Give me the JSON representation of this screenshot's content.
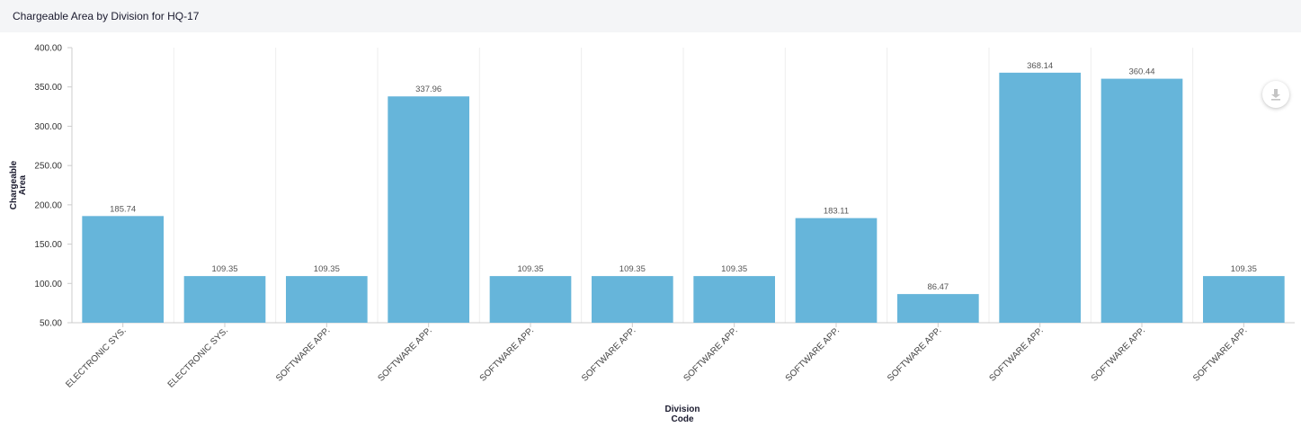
{
  "header": {
    "title": "Chargeable Area by Division for HQ-17"
  },
  "download_icon": "download-icon",
  "colors": {
    "bar": "#66b5da",
    "grid": "#eeeeee",
    "axis": "#cccccc",
    "header_bg": "#f4f5f7"
  },
  "chart_data": {
    "type": "bar",
    "title": "Chargeable Area by Division for HQ-17",
    "xlabel": "Division Code",
    "ylabel": "Chargeable Area",
    "ylim": [
      50,
      400
    ],
    "yticks": [
      "50.00",
      "100.00",
      "150.00",
      "200.00",
      "250.00",
      "300.00",
      "350.00",
      "400.00"
    ],
    "categories": [
      "ELECTRONIC SYS.",
      "ELECTRONIC SYS.",
      "SOFTWARE APP.",
      "SOFTWARE APP.",
      "SOFTWARE APP.",
      "SOFTWARE APP.",
      "SOFTWARE APP.",
      "SOFTWARE APP.",
      "SOFTWARE APP.",
      "SOFTWARE APP.",
      "SOFTWARE APP.",
      "SOFTWARE APP."
    ],
    "values": [
      185.74,
      109.35,
      109.35,
      337.96,
      109.35,
      109.35,
      109.35,
      183.11,
      86.47,
      368.14,
      360.44,
      109.35
    ],
    "value_labels": [
      "185.74",
      "109.35",
      "109.35",
      "337.96",
      "109.35",
      "109.35",
      "109.35",
      "183.11",
      "86.47",
      "368.14",
      "360.44",
      "109.35"
    ],
    "grid": true,
    "legend": "none"
  }
}
